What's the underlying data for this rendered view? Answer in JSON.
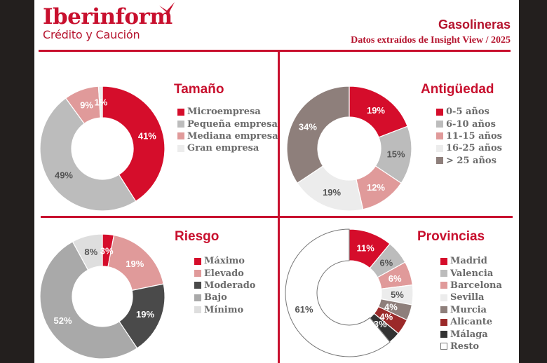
{
  "header": {
    "brand": "Iberinform",
    "brand_sub": "Crédito y Caución",
    "title": "Gasolineras",
    "subtitle": "Datos extraídos de Insight View / 2025"
  },
  "colors": {
    "brand_red": "#c8102e",
    "background_frame": "#231f1e"
  },
  "chart_data": [
    {
      "type": "pie",
      "donut": true,
      "title": "Tamaño",
      "categories": [
        "Microempresa",
        "Pequeña empresa",
        "Mediana empresa",
        "Gran empresa"
      ],
      "values": [
        41,
        49,
        9,
        1
      ],
      "labels": [
        "41%",
        "49%",
        "9%",
        "1%"
      ],
      "colors": [
        "#d50d2b",
        "#bcbcbc",
        "#e09a9a",
        "#ececec"
      ],
      "label_colors": [
        "#ffffff",
        "#555555",
        "#ffffff",
        "#ffffff"
      ],
      "legend": "right"
    },
    {
      "type": "pie",
      "donut": true,
      "title": "Antigüedad",
      "categories": [
        "0-5 años",
        "6-10 años",
        "11-15 años",
        "16-25 años",
        "> 25 años"
      ],
      "values": [
        19,
        15,
        12,
        19,
        34
      ],
      "labels": [
        "19%",
        "15%",
        "12%",
        "19%",
        "34%"
      ],
      "colors": [
        "#d50d2b",
        "#bcbcbc",
        "#e09a9a",
        "#ececec",
        "#8e7f7b"
      ],
      "label_colors": [
        "#ffffff",
        "#555555",
        "#ffffff",
        "#555555",
        "#ffffff"
      ],
      "legend": "right"
    },
    {
      "type": "pie",
      "donut": true,
      "title": "Riesgo",
      "categories": [
        "Máximo",
        "Elevado",
        "Moderado",
        "Bajo",
        "Mínimo"
      ],
      "values": [
        3,
        19,
        19,
        52,
        8
      ],
      "labels": [
        "3%",
        "19%",
        "19%",
        "52%",
        "8%"
      ],
      "colors": [
        "#d50d2b",
        "#e09a9a",
        "#4a4a4a",
        "#a9a9a9",
        "#dedede"
      ],
      "label_colors": [
        "#ffffff",
        "#ffffff",
        "#ffffff",
        "#ffffff",
        "#555555"
      ],
      "legend": "right"
    },
    {
      "type": "pie",
      "donut": true,
      "title": "Provincias",
      "categories": [
        "Madrid",
        "Valencia",
        "Barcelona",
        "Sevilla",
        "Murcia",
        "Alicante",
        "Málaga",
        "Resto"
      ],
      "values": [
        11,
        6,
        6,
        5,
        4,
        4,
        3,
        61
      ],
      "labels": [
        "11%",
        "6%",
        "6%",
        "5%",
        "4%",
        "4%",
        "3%",
        "61%"
      ],
      "colors": [
        "#d50d2b",
        "#bcbcbc",
        "#e09a9a",
        "#ececec",
        "#8e7f7b",
        "#9b2a2a",
        "#333333",
        "#ffffff"
      ],
      "label_colors": [
        "#ffffff",
        "#555555",
        "#ffffff",
        "#555555",
        "#ffffff",
        "#ffffff",
        "#ffffff",
        "#555555"
      ],
      "legend": "right"
    }
  ]
}
